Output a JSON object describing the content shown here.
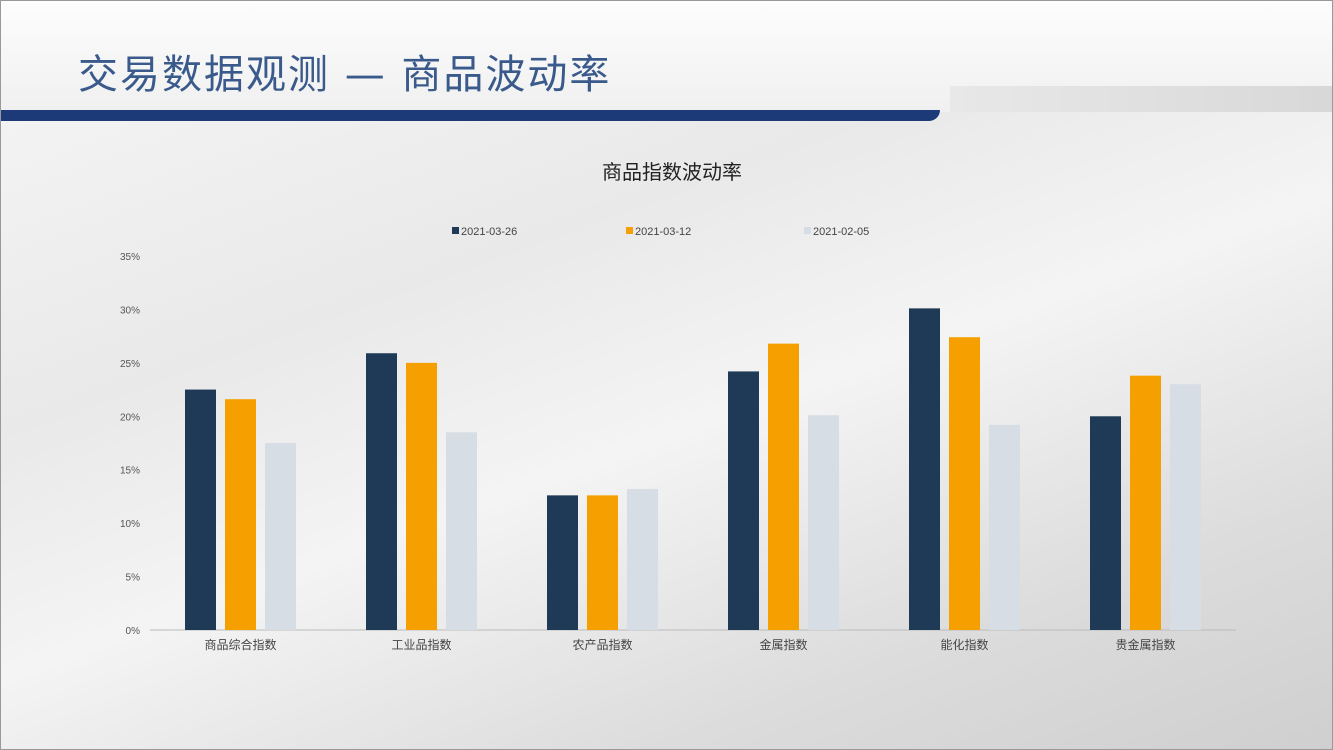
{
  "slide": {
    "title": "交易数据观测 — 商品波动率"
  },
  "chart_data": {
    "type": "bar",
    "title": "商品指数波动率",
    "xlabel": "",
    "ylabel": "",
    "categories": [
      "商品综合指数",
      "工业品指数",
      "农产品指数",
      "金属指数",
      "能化指数",
      "贵金属指数"
    ],
    "series": [
      {
        "name": "2021-03-26",
        "color": "#1f3a56",
        "values": [
          22.5,
          25.9,
          12.6,
          24.2,
          30.1,
          20.0
        ]
      },
      {
        "name": "2021-03-12",
        "color": "#f5a000",
        "values": [
          21.6,
          25.0,
          12.6,
          26.8,
          27.4,
          23.8
        ]
      },
      {
        "name": "2021-02-05",
        "color": "#d6dde5",
        "values": [
          17.5,
          18.5,
          13.2,
          20.1,
          19.2,
          23.0
        ]
      }
    ],
    "ylim": [
      0,
      35
    ],
    "yticks": [
      "0%",
      "5%",
      "10%",
      "15%",
      "20%",
      "25%",
      "30%",
      "35%"
    ],
    "grid": false,
    "legend": "top"
  }
}
